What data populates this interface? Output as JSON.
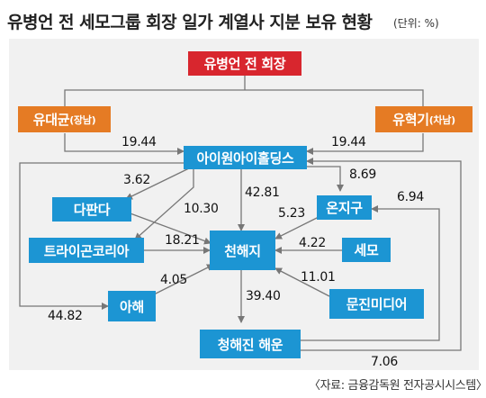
{
  "title": "유병언 전 세모그룹 회장 일가 계열사 지분 보유 현황",
  "unit": "(단위: %)",
  "source": "〈자료: 금융감독원 전자공시시스템〉",
  "colors": {
    "chairman": "#d8262e",
    "sons": "#e57b24",
    "companies": "#1c95d3",
    "panel": "#f1f1f1",
    "arrow": "#777777"
  },
  "nodes": {
    "chairman": "유병언 전 회장",
    "son1_name": "유대균",
    "son1_role": "(장남)",
    "son2_name": "유혁기",
    "son2_role": "(차남)",
    "holdings": "아이원아이홀딩스",
    "dapanda": "다판다",
    "onjigu": "온지구",
    "triangle": "트라이곤코리아",
    "cheonhaeji": "천해지",
    "semo": "세모",
    "ahae": "아해",
    "munjin": "문진미디어",
    "chonghaejin": "청해진 해운"
  },
  "edges": {
    "son1_holdings": "19.44",
    "son2_holdings": "19.44",
    "holdings_dapanda": "3.62",
    "holdings_triangle": "10.30",
    "holdings_cheonhaeji": "42.81",
    "holdings_onjigu": "8.69",
    "onjigu_cheonhaeji": "5.23",
    "triangle_cheonhaeji": "18.21",
    "semo_cheonhaeji": "4.22",
    "ahae_cheonhaeji": "4.05",
    "munjin_cheonhaeji": "11.01",
    "cheonhaeji_chonghaejin": "39.40",
    "holdings_ahae": "44.82",
    "chonghaejin_onjigu": "6.94",
    "chonghaejin_holdings": "7.06"
  }
}
